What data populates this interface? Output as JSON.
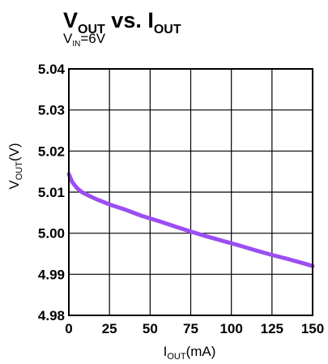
{
  "chart_data": {
    "type": "line",
    "title": {
      "part1_main": "V",
      "part1_sub": "OUT",
      "part2_main": " vs. I",
      "part2_sub": "OUT"
    },
    "subtitle": {
      "main": "V",
      "sub": "IN",
      "rest": "=6V"
    },
    "xlabel": {
      "main": "I",
      "sub": "OUT",
      "rest": "(mA)"
    },
    "ylabel": {
      "main": "V",
      "sub": "OUT",
      "rest": "(V)"
    },
    "xlim": [
      0,
      150
    ],
    "ylim": [
      4.98,
      5.04
    ],
    "xticks": [
      "0",
      "25",
      "50",
      "75",
      "100",
      "125",
      "150"
    ],
    "yticks": [
      "4.98",
      "4.99",
      "5.00",
      "5.01",
      "5.02",
      "5.03",
      "5.04"
    ],
    "grid": true,
    "series": [
      {
        "color": "#9b4ef2",
        "x": [
          0,
          2,
          5,
          8,
          12,
          18,
          25,
          35,
          45,
          55,
          65,
          75,
          85,
          95,
          105,
          115,
          125,
          135,
          145,
          150
        ],
        "y": [
          5.0144,
          5.0125,
          5.011,
          5.01,
          5.0092,
          5.0081,
          5.007,
          5.0057,
          5.0042,
          5.003,
          5.0017,
          5.0004,
          4.9992,
          4.9981,
          4.997,
          4.9958,
          4.9947,
          4.9937,
          4.9926,
          4.992
        ]
      }
    ]
  }
}
